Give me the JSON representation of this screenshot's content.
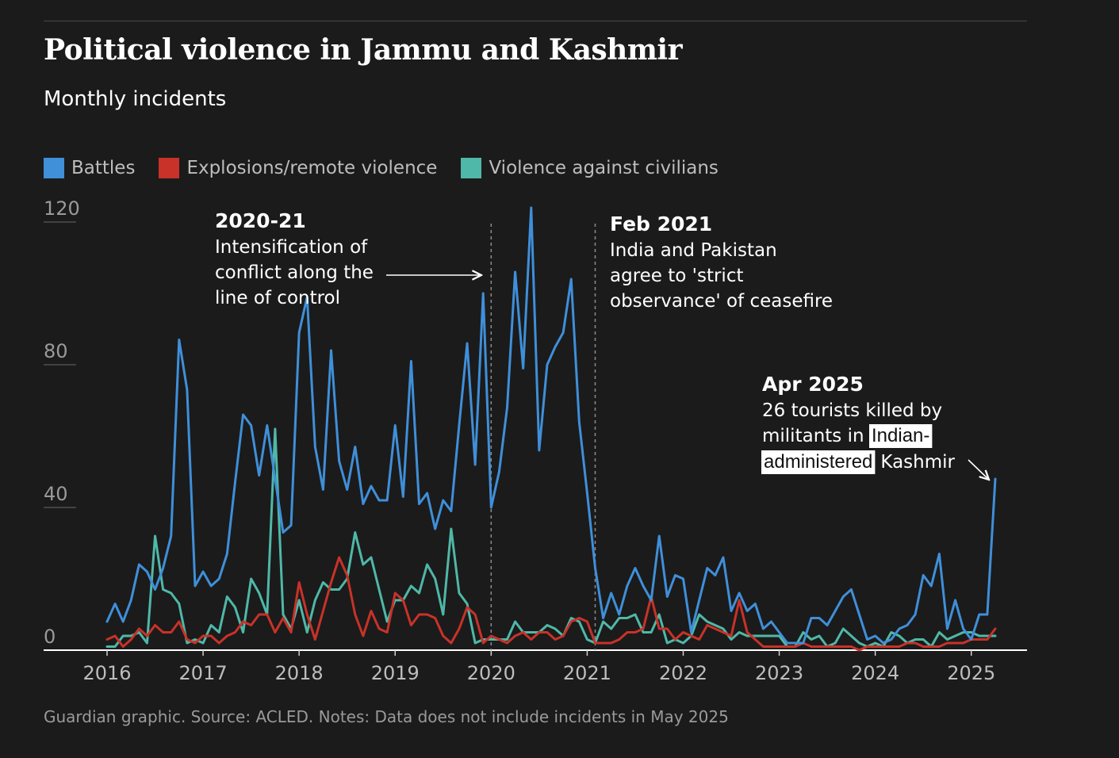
{
  "title": "Political violence in Jammu and Kashmir",
  "subtitle": "Monthly incidents",
  "footer": "Guardian graphic. Source: ACLED. Notes: Data does not include incidents in May 2025",
  "chart_data": {
    "type": "line",
    "title": "Political violence in Jammu and Kashmir",
    "subtitle": "Monthly incidents",
    "xlabel": "",
    "ylabel": "",
    "x_start": "2016-01",
    "x_end": "2025-04",
    "x_ticks": [
      "2016",
      "2017",
      "2018",
      "2019",
      "2020",
      "2021",
      "2022",
      "2023",
      "2024",
      "2025"
    ],
    "y_ticks": [
      0,
      40,
      80,
      120
    ],
    "ylim": [
      0,
      125
    ],
    "grid": false,
    "legend_position": "top-left",
    "series": [
      {
        "name": "Battles",
        "color": "#3f8fd9",
        "values": [
          8,
          13,
          8,
          14,
          24,
          22,
          17,
          23,
          32,
          87,
          73,
          18,
          22,
          18,
          20,
          27,
          47,
          66,
          63,
          49,
          63,
          48,
          33,
          35,
          89,
          99,
          57,
          45,
          84,
          53,
          45,
          57,
          41,
          46,
          42,
          42,
          63,
          43,
          81,
          41,
          44,
          34,
          42,
          39,
          63,
          86,
          52,
          100,
          40,
          50,
          68,
          106,
          79,
          124,
          56,
          80,
          85,
          89,
          104,
          64,
          44,
          23,
          9,
          16,
          10,
          18,
          23,
          18,
          14,
          32,
          15,
          21,
          20,
          5,
          14,
          23,
          21,
          26,
          11,
          16,
          11,
          13,
          6,
          8,
          5,
          2,
          2,
          2,
          9,
          9,
          7,
          11,
          15,
          17,
          10,
          3,
          4,
          2,
          3,
          6,
          7,
          10,
          21,
          18,
          27,
          6,
          14,
          6,
          3,
          10,
          10,
          48
        ],
        "annotated_last_value": 48
      },
      {
        "name": "Explosions/remote violence",
        "color": "#c83228",
        "values": [
          3,
          4,
          1,
          3,
          6,
          4,
          7,
          5,
          5,
          8,
          3,
          2,
          4,
          4,
          2,
          4,
          5,
          8,
          7,
          10,
          10,
          5,
          9,
          5,
          19,
          10,
          3,
          11,
          19,
          26,
          21,
          10,
          4,
          11,
          6,
          5,
          16,
          14,
          7,
          10,
          10,
          9,
          4,
          2,
          6,
          12,
          10,
          2,
          4,
          3,
          2,
          4,
          5,
          3,
          5,
          5,
          3,
          4,
          8,
          9,
          8,
          2,
          2,
          2,
          3,
          5,
          5,
          6,
          15,
          6,
          6,
          3,
          5,
          4,
          3,
          7,
          6,
          5,
          4,
          14,
          5,
          3,
          1,
          1,
          1,
          1,
          1,
          2,
          1,
          1,
          1,
          1,
          1,
          1,
          0,
          1,
          1,
          1,
          1,
          1,
          2,
          2,
          1,
          1,
          1,
          2,
          2,
          2,
          3,
          3,
          3,
          6
        ]
      },
      {
        "name": "Violence against civilians",
        "color": "#4fb8a8",
        "values": [
          1,
          1,
          4,
          4,
          5,
          2,
          32,
          17,
          16,
          13,
          2,
          3,
          2,
          7,
          5,
          15,
          12,
          5,
          20,
          16,
          10,
          62,
          10,
          6,
          14,
          5,
          14,
          19,
          17,
          17,
          20,
          33,
          24,
          26,
          17,
          8,
          14,
          14,
          18,
          16,
          24,
          20,
          10,
          34,
          16,
          13,
          2,
          3,
          3,
          3,
          3,
          8,
          5,
          5,
          5,
          7,
          6,
          4,
          9,
          8,
          3,
          2,
          8,
          6,
          9,
          9,
          10,
          5,
          5,
          10,
          2,
          3,
          2,
          4,
          10,
          8,
          7,
          6,
          3,
          5,
          4,
          4,
          4,
          4,
          4,
          1,
          1,
          5,
          3,
          4,
          1,
          2,
          6,
          4,
          2,
          1,
          2,
          1,
          5,
          4,
          2,
          3,
          3,
          1,
          5,
          3,
          4,
          5,
          5,
          4,
          4,
          4
        ]
      }
    ],
    "annotations": [
      {
        "heading": "2020-21",
        "lines": [
          "Intensification of",
          "conflict along the",
          "line of control"
        ],
        "marker_date": "2020-01"
      },
      {
        "heading": "Feb 2021",
        "lines": [
          "India and Pakistan",
          "agree to 'strict",
          "observance' of ceasefire"
        ],
        "marker_date": "2021-02"
      },
      {
        "heading": "Apr 2025",
        "lines": [
          "26 tourists killed by",
          "militants in"
        ],
        "highlight_a": "Indian-",
        "highlight_b": "administered",
        "tail": "Kashmir"
      }
    ]
  }
}
